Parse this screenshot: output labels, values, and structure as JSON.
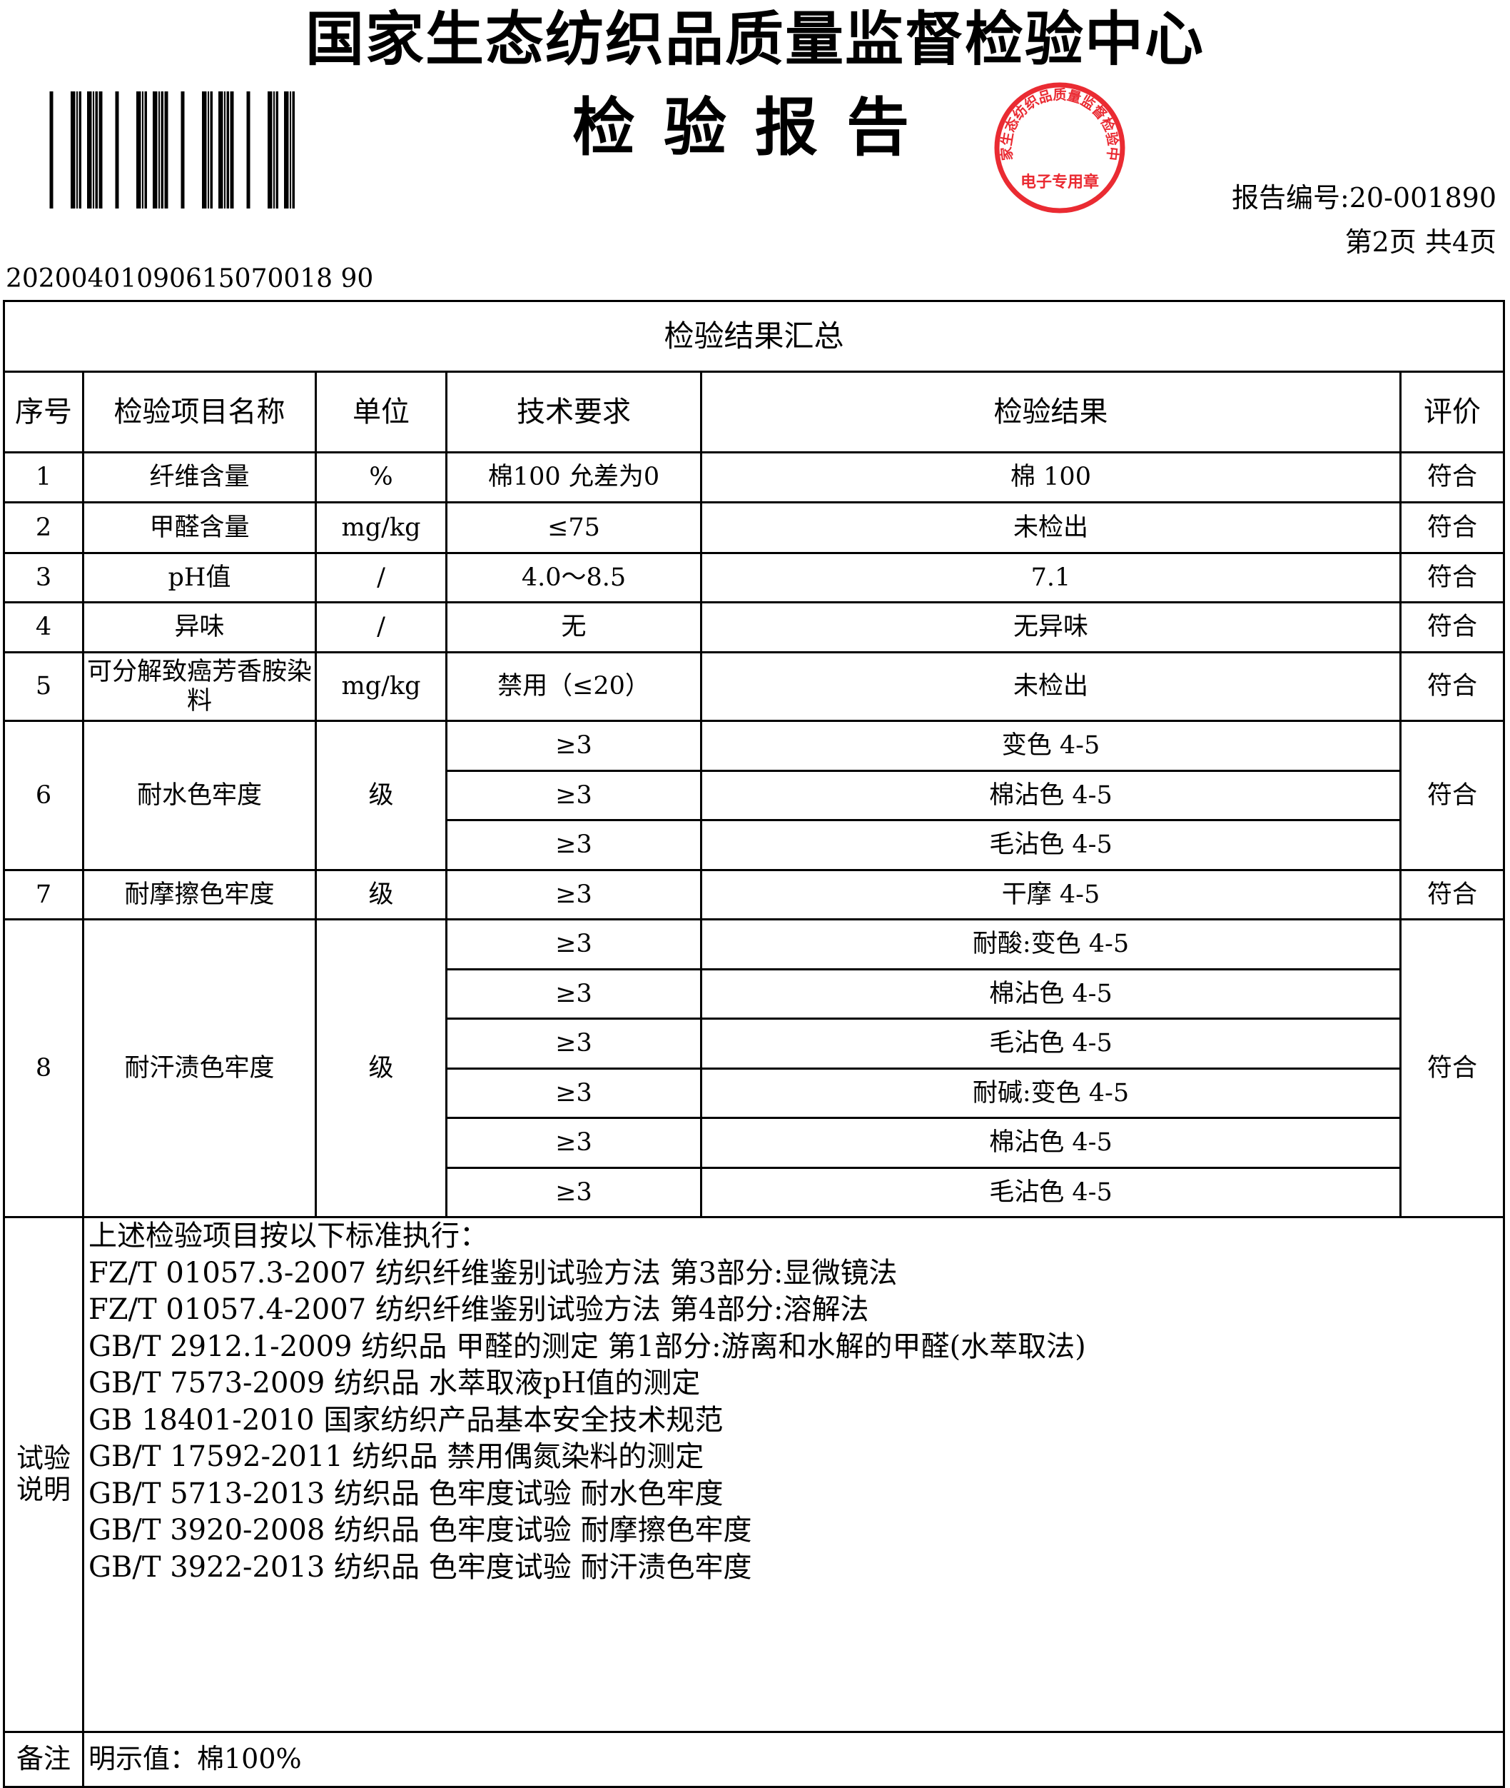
{
  "header": {
    "org_title": "国家生态纺织品质量监督检验中心",
    "doc_title": "检验报告",
    "report_number": "报告编号:20-001890",
    "page_info": "第2页  共4页",
    "serial": "20200401090615070018 90",
    "stamp_text": "国家生态纺织品质量监督检验中心 电子专用章",
    "stamp_color": "#e8141c"
  },
  "table": {
    "caption": "检验结果汇总",
    "columns": [
      "序号",
      "检验项目名称",
      "单位",
      "技术要求",
      "检验结果",
      "评价"
    ],
    "rows": [
      {
        "no": "1",
        "item": "纤维含量",
        "unit": "%",
        "subs": [
          {
            "req": "棉100  允差为0",
            "result": "棉  100"
          }
        ],
        "eval": "符合"
      },
      {
        "no": "2",
        "item": "甲醛含量",
        "unit": "mg/kg",
        "subs": [
          {
            "req": "≤75",
            "result": "未检出"
          }
        ],
        "eval": "符合"
      },
      {
        "no": "3",
        "item": "pH值",
        "unit": "/",
        "subs": [
          {
            "req": "4.0～8.5",
            "result": "7.1"
          }
        ],
        "eval": "符合"
      },
      {
        "no": "4",
        "item": "异味",
        "unit": "/",
        "subs": [
          {
            "req": "无",
            "result": "无异味"
          }
        ],
        "eval": "符合"
      },
      {
        "no": "5",
        "item": "可分解致癌芳香胺染料",
        "unit": "mg/kg",
        "subs": [
          {
            "req": "禁用（≤20）",
            "result": "未检出"
          }
        ],
        "eval": "符合"
      },
      {
        "no": "6",
        "item": "耐水色牢度",
        "unit": "级",
        "subs": [
          {
            "req": "≥3",
            "result": "变色  4-5"
          },
          {
            "req": "≥3",
            "result": "棉沾色  4-5"
          },
          {
            "req": "≥3",
            "result": "毛沾色  4-5"
          }
        ],
        "eval": "符合"
      },
      {
        "no": "7",
        "item": "耐摩擦色牢度",
        "unit": "级",
        "subs": [
          {
            "req": "≥3",
            "result": "干摩  4-5"
          }
        ],
        "eval": "符合"
      },
      {
        "no": "8",
        "item": "耐汗渍色牢度",
        "unit": "级",
        "subs": [
          {
            "req": "≥3",
            "result": "耐酸:变色  4-5"
          },
          {
            "req": "≥3",
            "result": "棉沾色  4-5"
          },
          {
            "req": "≥3",
            "result": "毛沾色  4-5"
          },
          {
            "req": "≥3",
            "result": "耐碱:变色  4-5"
          },
          {
            "req": "≥3",
            "result": "棉沾色  4-5"
          },
          {
            "req": "≥3",
            "result": "毛沾色  4-5"
          }
        ],
        "eval": "符合"
      }
    ],
    "notes_label": "试验说明",
    "notes": [
      "上述检验项目按以下标准执行：",
      "FZ/T  01057.3-2007  纺织纤维鉴别试验方法  第3部分:显微镜法",
      "FZ/T  01057.4-2007  纺织纤维鉴别试验方法  第4部分:溶解法",
      "GB/T  2912.1-2009  纺织品  甲醛的测定  第1部分:游离和水解的甲醛(水萃取法)",
      "GB/T  7573-2009  纺织品  水萃取液pH值的测定",
      "GB  18401-2010  国家纺织产品基本安全技术规范",
      "GB/T  17592-2011  纺织品  禁用偶氮染料的测定",
      "GB/T  5713-2013  纺织品  色牢度试验  耐水色牢度",
      "GB/T  3920-2008  纺织品  色牢度试验  耐摩擦色牢度",
      "GB/T  3922-2013  纺织品  色牢度试验  耐汗渍色牢度"
    ],
    "remark_label": "备注",
    "remark": "明示值：棉100%"
  }
}
